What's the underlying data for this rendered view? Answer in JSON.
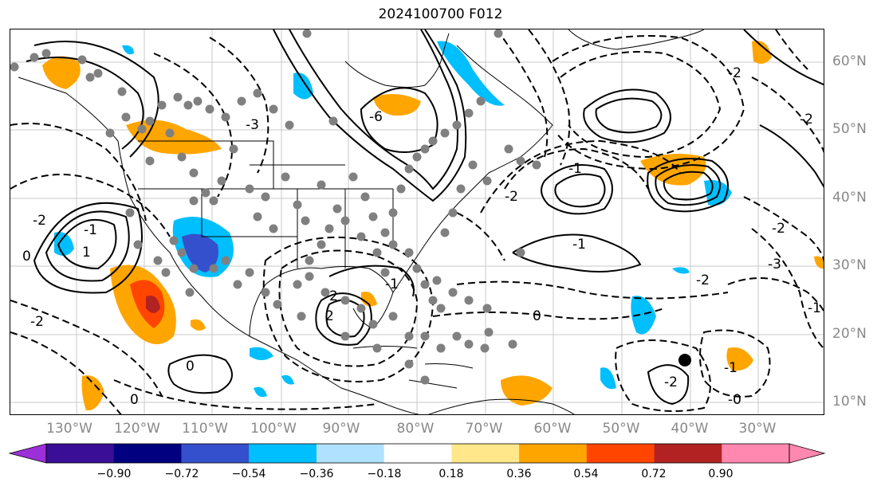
{
  "title": "2024100700 F012",
  "lon_labels": [
    "130°W",
    "120°W",
    "110°W",
    "100°W",
    "90°W",
    "80°W",
    "70°W",
    "60°W",
    "50°W",
    "40°W",
    "30°W"
  ],
  "lat_labels": [
    "60°N",
    "50°N",
    "40°N",
    "30°N",
    "20°N",
    "10°N"
  ],
  "colorbar": {
    "colors": [
      "#9b30d9",
      "#3a0e96",
      "#000080",
      "#3550cc",
      "#00bfff",
      "#b0e2ff",
      "#ffffff",
      "#ffe78a",
      "#ffa500",
      "#ff4500",
      "#b22222",
      "#ff88b0",
      "#ff88b0"
    ],
    "bins": [
      "#3a0e96",
      "#000080",
      "#3550cc",
      "#00bfff",
      "#b0e2ff",
      "#ffffff",
      "#ffe78a",
      "#ffa500",
      "#ff4500",
      "#b22222",
      "#ff88b0"
    ],
    "under_color": "#9b30d9",
    "over_color": "#ff88b0",
    "labels": [
      "−0.90",
      "−0.72",
      "−0.54",
      "−0.36",
      "−0.18",
      "0.18",
      "0.36",
      "0.54",
      "0.72",
      "0.90"
    ]
  },
  "contour_labels": [
    "-2",
    "-1",
    "0",
    "1",
    "2",
    "-6",
    "-3",
    "-2",
    "-1",
    "0",
    "-2",
    "-1",
    "2",
    "-2",
    "0",
    "-2",
    "-1",
    "-0",
    "-1",
    "-2",
    "-2",
    "-2",
    "-1",
    "-3",
    "0"
  ],
  "map_colors": {
    "positive_anomaly": "#ffa500",
    "strong_positive": "#ff4500",
    "very_strong_positive": "#b22222",
    "negative_anomaly": "#00bfff",
    "strong_negative": "#3550cc",
    "station_marker": "#808080",
    "grid": "#c8c8c8",
    "coastline": "#000000"
  }
}
